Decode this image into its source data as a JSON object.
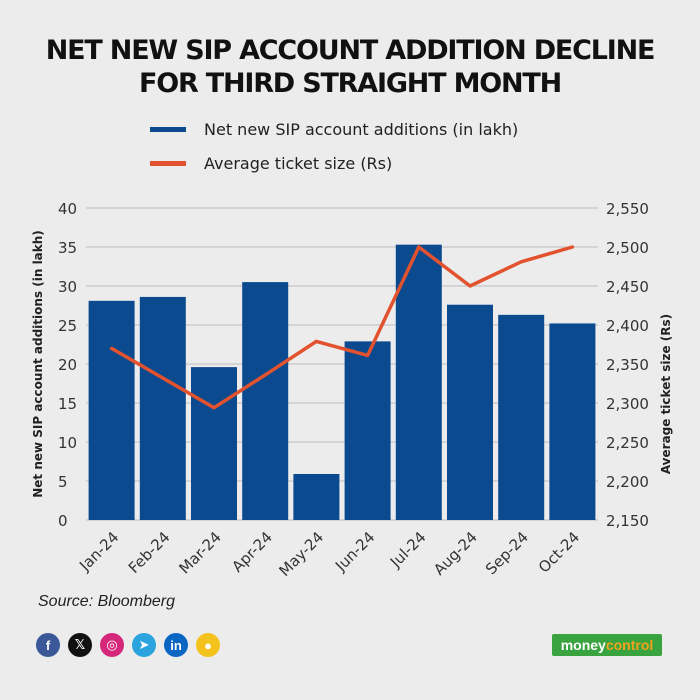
{
  "title": {
    "line1": "NET NEW SIP ACCOUNT ADDITION DECLINE",
    "line2": "FOR THIRD STRAIGHT MONTH"
  },
  "legend": {
    "items": [
      {
        "label": "Net new SIP account additions (in lakh)",
        "color": "#0b4a8e"
      },
      {
        "label": "Average ticket size (Rs)",
        "color": "#e2522e"
      }
    ]
  },
  "chart_data": {
    "type": "bar+line",
    "categories": [
      "Jan-24",
      "Feb-24",
      "Mar-24",
      "Apr-24",
      "May-24",
      "Jun-24",
      "Jul-24",
      "Aug-24",
      "Sep-24",
      "Oct-24"
    ],
    "series": [
      {
        "name": "Net new SIP account additions (in lakh)",
        "type": "bar",
        "axis": "left",
        "color": "#0b4a8e",
        "values": [
          28.1,
          28.6,
          19.6,
          30.5,
          5.9,
          22.9,
          35.3,
          27.6,
          26.3,
          25.2
        ]
      },
      {
        "name": "Average ticket size (Rs)",
        "type": "line",
        "axis": "right",
        "color": "#e2522e",
        "values": [
          2370,
          2332,
          2294,
          2336,
          2379,
          2361,
          2500,
          2450,
          2481,
          2500
        ]
      }
    ],
    "left_axis": {
      "label": "Net new SIP account additions (in lakh)",
      "min": 0,
      "max": 40,
      "ticks": [
        0,
        5,
        10,
        15,
        20,
        25,
        30,
        35,
        40
      ],
      "tick_labels": [
        "0",
        "5",
        "10",
        "15",
        "20",
        "25",
        "30",
        "35",
        "40"
      ]
    },
    "right_axis": {
      "label": "Average ticket size (Rs)",
      "min": 2150,
      "max": 2550,
      "ticks": [
        2150,
        2200,
        2250,
        2300,
        2350,
        2400,
        2450,
        2500,
        2550
      ],
      "tick_labels": [
        "2,150",
        "2,200",
        "2,250",
        "2,300",
        "2,350",
        "2,400",
        "2,450",
        "2,500",
        "2,550"
      ]
    },
    "grid": true,
    "legend_position": "top"
  },
  "source": "Source: Bloomberg",
  "socials": [
    {
      "icon": "facebook-icon",
      "glyph": "f",
      "color": "#3b5998"
    },
    {
      "icon": "x-icon",
      "glyph": "𝕏",
      "color": "#111111"
    },
    {
      "icon": "instagram-icon",
      "glyph": "◎",
      "color": "#d6287b"
    },
    {
      "icon": "telegram-icon",
      "glyph": "➤",
      "color": "#2aa3df"
    },
    {
      "icon": "linkedin-icon",
      "glyph": "in",
      "color": "#0a66c2"
    },
    {
      "icon": "koo-icon",
      "glyph": "●",
      "color": "#f4c21c"
    }
  ],
  "brand": {
    "part1": "money",
    "part2": "control"
  }
}
